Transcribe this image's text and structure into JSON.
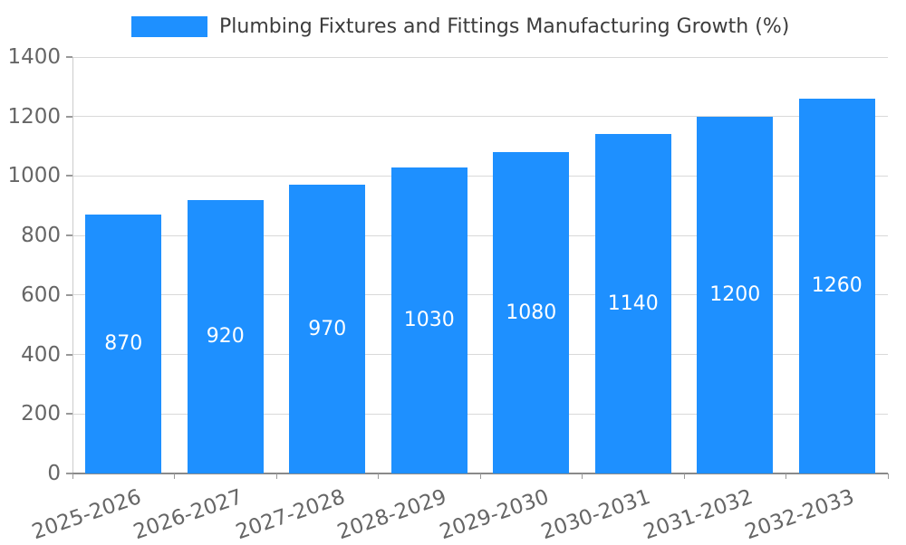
{
  "legend": {
    "title": "Plumbing Fixtures and Fittings Manufacturing Growth (%)"
  },
  "chart_data": {
    "type": "bar",
    "title": "Plumbing Fixtures and Fittings Manufacturing Growth (%)",
    "categories": [
      "2025-2026",
      "2026-2027",
      "2027-2028",
      "2028-2029",
      "2029-2030",
      "2030-2031",
      "2031-2032",
      "2032-2033"
    ],
    "values": [
      870,
      920,
      970,
      1030,
      1080,
      1140,
      1200,
      1260
    ],
    "value_labels": [
      "870",
      "920",
      "970",
      "1030",
      "1080",
      "1140",
      "1200",
      "1260"
    ],
    "xlabel": "",
    "ylabel": "",
    "ylim": [
      0,
      1400
    ],
    "yticks": [
      0,
      200,
      400,
      600,
      800,
      1000,
      1200,
      1400
    ],
    "grid": "horizontal",
    "legend_position": "top",
    "x_label_rotation_deg": -19,
    "bar_color": "#1e90ff",
    "value_label_color": "#ffffff",
    "grid_color": "#d9d9d9",
    "axis_color": "#8a8a8a",
    "tick_label_color": "#666666",
    "title_color": "#3c3c3c",
    "background_color": "#ffffff"
  }
}
